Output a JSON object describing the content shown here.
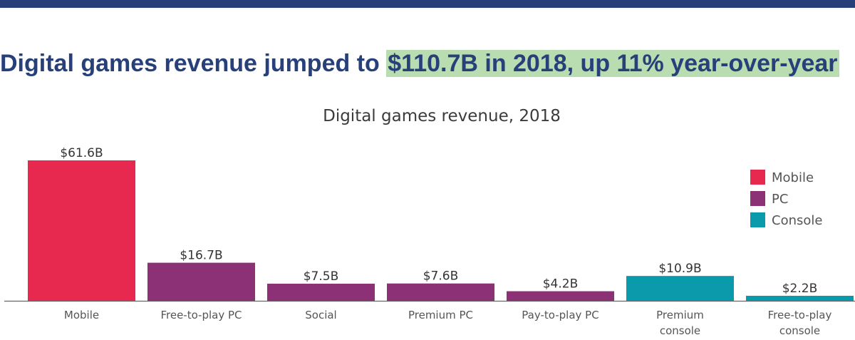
{
  "headline": {
    "prefix": "Digital games revenue jumped to ",
    "highlight": "$110.7B in 2018, up 11% year-over-year"
  },
  "colors": {
    "top_bar": "#27407a",
    "headline_text": "#27407a",
    "highlight": "#b9ddb0",
    "mobile": "#e8294f",
    "pc": "#8c3175",
    "console": "#0a9aac"
  },
  "chart_data": {
    "type": "bar",
    "title": "Digital games revenue, 2018",
    "unit_prefix": "$",
    "unit_suffix": "B",
    "ylim": [
      0,
      61.6
    ],
    "grid": false,
    "legend_position": "top-right",
    "legend": [
      {
        "name": "Mobile",
        "color": "#e8294f"
      },
      {
        "name": "PC",
        "color": "#8c3175"
      },
      {
        "name": "Console",
        "color": "#0a9aac"
      }
    ],
    "bars": [
      {
        "category": [
          "Mobile"
        ],
        "value": 61.6,
        "label": "$61.6B",
        "group": "Mobile"
      },
      {
        "category": [
          "Free-to-play PC"
        ],
        "value": 16.7,
        "label": "$16.7B",
        "group": "PC"
      },
      {
        "category": [
          "Social"
        ],
        "value": 7.5,
        "label": "$7.5B",
        "group": "PC"
      },
      {
        "category": [
          "Premium PC"
        ],
        "value": 7.6,
        "label": "$7.6B",
        "group": "PC"
      },
      {
        "category": [
          "Pay-to-play PC"
        ],
        "value": 4.2,
        "label": "$4.2B",
        "group": "PC"
      },
      {
        "category": [
          "Premium",
          "console"
        ],
        "value": 10.9,
        "label": "$10.9B",
        "group": "Console"
      },
      {
        "category": [
          "Free-to-play",
          "console"
        ],
        "value": 2.2,
        "label": "$2.2B",
        "group": "Console"
      }
    ]
  }
}
